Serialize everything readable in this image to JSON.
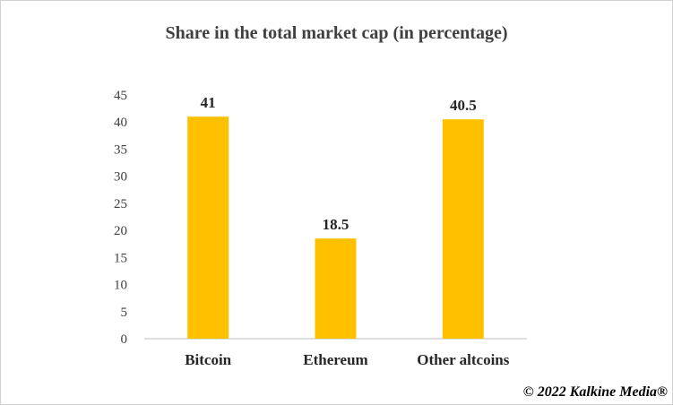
{
  "chart_data": {
    "type": "bar",
    "title": "Share in  the total market cap (in percentage)",
    "categories": [
      "Bitcoin",
      "Ethereum",
      "Other altcoins"
    ],
    "values": [
      41,
      18.5,
      40.5
    ],
    "data_labels": [
      "41",
      "18.5",
      "40.5"
    ],
    "y_ticks": [
      "0",
      "5",
      "10",
      "15",
      "20",
      "25",
      "30",
      "35",
      "40",
      "45"
    ],
    "ylim": [
      0,
      45
    ],
    "grid": false,
    "legend": "none",
    "bar_color": "#FFC000"
  },
  "footer": {
    "copyright": "© 2022 Kalkine Media®"
  }
}
